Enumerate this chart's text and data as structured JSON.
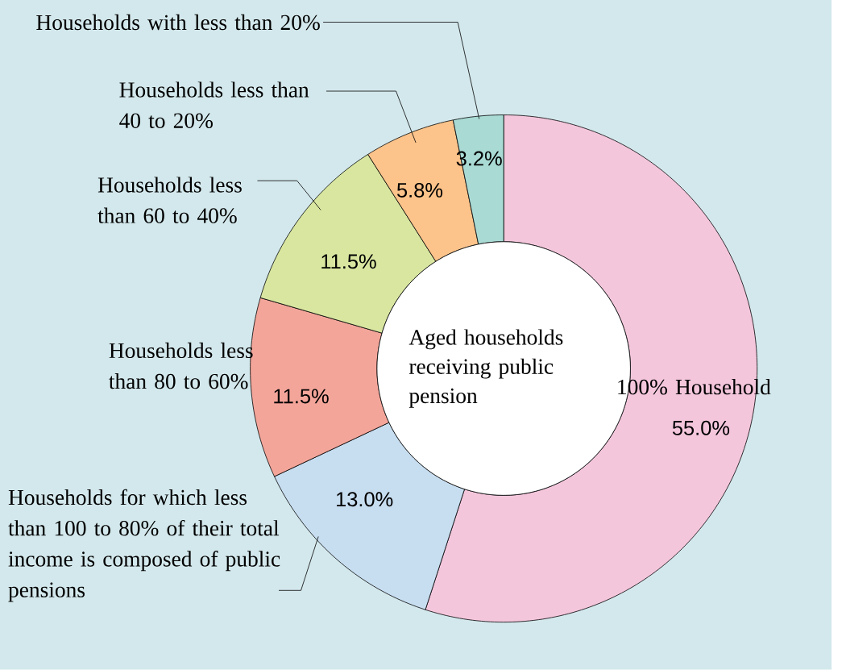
{
  "chart_data": {
    "type": "donut",
    "title": "Aged households receiving public pension",
    "categories": [
      "100% Household",
      "Households for which less than 100 to 80% of their total income is composed of public pensions",
      "Households less than 80 to 60%",
      "Households less than 60 to 40%",
      "Households less than 40 to 20%",
      "Households with less than 20%"
    ],
    "values": [
      55.0,
      13.0,
      11.5,
      11.5,
      5.8,
      3.2
    ],
    "value_labels": [
      "55.0%",
      "13.0%",
      "11.5%",
      "11.5%",
      "5.8%",
      "3.2%"
    ],
    "colors": [
      "#f4c6dc",
      "#c7ddf0",
      "#f4a59a",
      "#d8e6a0",
      "#fcc38a",
      "#a9dad4"
    ]
  }
}
